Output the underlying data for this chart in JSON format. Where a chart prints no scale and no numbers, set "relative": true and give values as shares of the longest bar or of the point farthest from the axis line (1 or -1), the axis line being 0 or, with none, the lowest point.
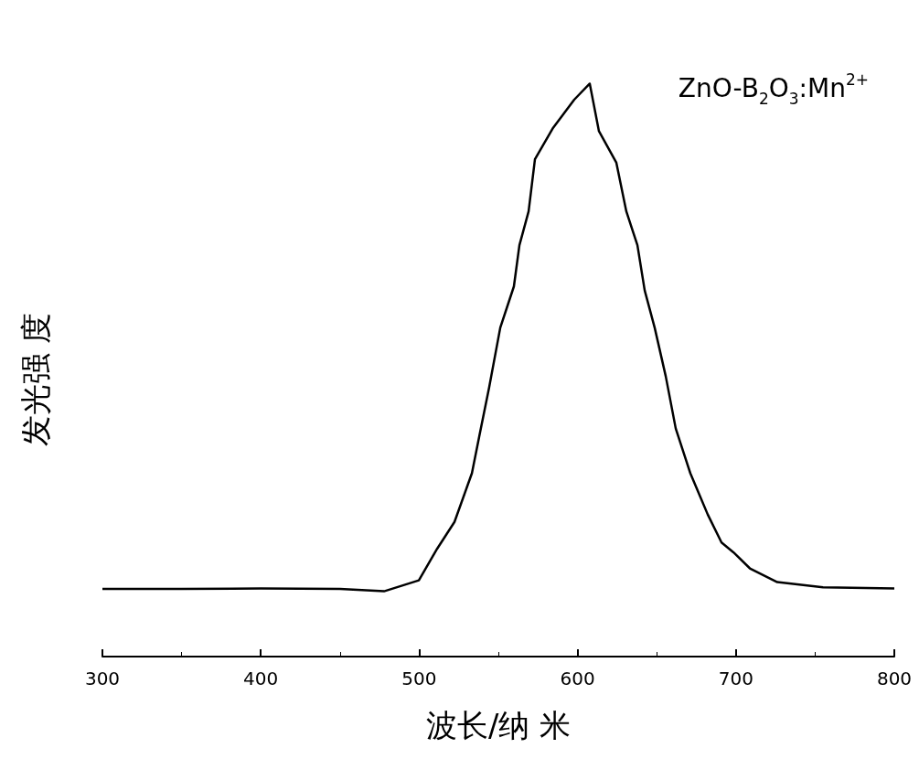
{
  "chart_data": {
    "type": "line",
    "relative": true,
    "xlabel": "波长/纳 米",
    "ylabel": "发光强 度",
    "annotations": [
      "ZnO-B$_{2}$O$_{3}$:Mn$^{2+}$"
    ],
    "xlim": [
      300,
      800
    ],
    "xticks": [
      300,
      400,
      500,
      600,
      700,
      800
    ],
    "grid": false,
    "marker": "none",
    "line_style": "solid",
    "series": [
      {
        "color": "#000000",
        "x": [
          300,
          350,
          400,
          450,
          477.8,
          499.8,
          511.3,
          522.3,
          533.3,
          537.9,
          544.2,
          551.2,
          559.8,
          563.3,
          569.1,
          573.1,
          584.6,
          597.9,
          607.7,
          613.5,
          624.5,
          630.8,
          637.8,
          642.4,
          648.7,
          655.7,
          662,
          671.2,
          682.2,
          690.9,
          698.4,
          708.8,
          726.1,
          755,
          800
        ],
        "values": [
          0.118,
          0.118,
          0.119,
          0.118,
          0.114,
          0.133,
          0.188,
          0.235,
          0.32,
          0.384,
          0.47,
          0.574,
          0.646,
          0.718,
          0.777,
          0.868,
          0.923,
          0.972,
          1,
          0.917,
          0.862,
          0.777,
          0.718,
          0.639,
          0.574,
          0.489,
          0.398,
          0.32,
          0.248,
          0.199,
          0.182,
          0.154,
          0.13,
          0.121,
          0.119
        ]
      }
    ]
  }
}
